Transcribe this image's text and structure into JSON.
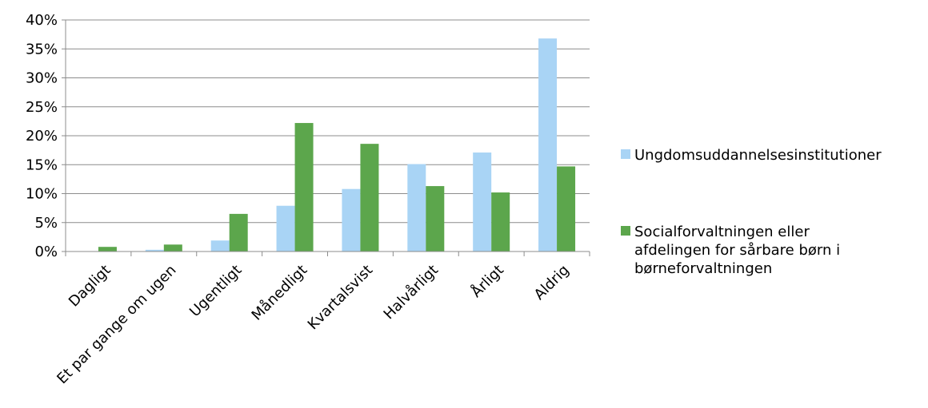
{
  "chart_data": {
    "type": "bar",
    "title": "",
    "xlabel": "",
    "ylabel": "",
    "ylim": [
      0,
      0.4
    ],
    "y_ticks": [
      0,
      0.05,
      0.1,
      0.15,
      0.2,
      0.25,
      0.3,
      0.35,
      0.4
    ],
    "y_tick_labels": [
      "0%",
      "5%",
      "10%",
      "15%",
      "20%",
      "25%",
      "30%",
      "35%",
      "40%"
    ],
    "grid": true,
    "legend_position": "right",
    "categories": [
      "Dagligt",
      "Et par gange om ugen",
      "Ugentligt",
      "Månedligt",
      "Kvartalsvist",
      "Halvårligt",
      "Årligt",
      "Aldrig"
    ],
    "series": [
      {
        "name": "Ungdomsuddannelsesinstitutioner",
        "legend_lines": [
          "Ungdomsuddannelsesinstitutioner"
        ],
        "color": "#a9d4f5",
        "values": [
          0.0,
          0.003,
          0.019,
          0.079,
          0.108,
          0.151,
          0.171,
          0.368
        ]
      },
      {
        "name": "Socialforvaltningen eller afdelingen for sårbare børn i børneforvaltningen",
        "legend_lines": [
          "Socialforvaltningen eller",
          "afdelingen for sårbare børn i",
          "børneforvaltningen"
        ],
        "color": "#5ca64c",
        "values": [
          0.008,
          0.012,
          0.065,
          0.222,
          0.186,
          0.113,
          0.102,
          0.147
        ]
      }
    ]
  }
}
